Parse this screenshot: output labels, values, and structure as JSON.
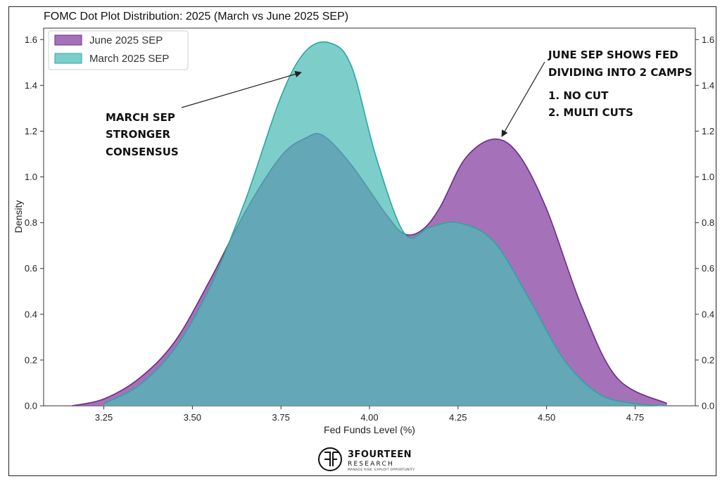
{
  "chart_data": {
    "type": "area",
    "title": "FOMC Dot Plot Distribution: 2025 (March vs June 2025 SEP)",
    "xlabel": "Fed Funds Level (%)",
    "ylabel": "Density",
    "xlim": [
      3.08,
      4.92
    ],
    "ylim": [
      0,
      1.65
    ],
    "xticks": [
      "3.25",
      "3.50",
      "3.75",
      "4.00",
      "4.25",
      "4.50",
      "4.75"
    ],
    "yticks": [
      "0.0",
      "0.2",
      "0.4",
      "0.6",
      "0.8",
      "1.0",
      "1.2",
      "1.4",
      "1.6"
    ],
    "legend_position": "top-left",
    "grid": false,
    "series": [
      {
        "name": "June 2025 SEP",
        "color": "#8e4fa8",
        "x": [
          3.16,
          3.25,
          3.35,
          3.45,
          3.55,
          3.65,
          3.75,
          3.82,
          3.87,
          3.95,
          4.05,
          4.1,
          4.15,
          4.2,
          4.27,
          4.35,
          4.42,
          4.5,
          4.6,
          4.7,
          4.84
        ],
        "y": [
          0.0,
          0.03,
          0.12,
          0.28,
          0.55,
          0.85,
          1.09,
          1.17,
          1.18,
          1.05,
          0.83,
          0.75,
          0.77,
          0.87,
          1.08,
          1.165,
          1.1,
          0.86,
          0.43,
          0.12,
          0.01
        ]
      },
      {
        "name": "March 2025 SEP",
        "color": "#4bbbb5",
        "x": [
          3.25,
          3.35,
          3.45,
          3.55,
          3.65,
          3.75,
          3.82,
          3.89,
          3.95,
          4.02,
          4.1,
          4.17,
          4.25,
          4.35,
          4.45,
          4.55,
          4.65,
          4.75,
          4.84
        ],
        "y": [
          0.01,
          0.09,
          0.25,
          0.52,
          0.9,
          1.35,
          1.55,
          1.585,
          1.48,
          1.08,
          0.75,
          0.78,
          0.8,
          0.72,
          0.47,
          0.2,
          0.05,
          0.01,
          0.0
        ]
      }
    ],
    "annotations": [
      {
        "lines": [
          "MARCH SEP",
          "STRONGER",
          "CONSENSUS"
        ],
        "arrow_to": [
          3.8,
          1.45
        ]
      },
      {
        "lines": [
          "JUNE SEP SHOWS FED",
          "DIVIDING INTO 2 CAMPS",
          "",
          "1.  NO CUT",
          "2.  MULTI CUTS"
        ],
        "arrow_to": [
          4.37,
          1.18
        ]
      }
    ]
  },
  "logo": {
    "name": "3FOURTEEN",
    "sub": "RESEARCH",
    "tagline": "MANAGE RISK. EXPLOIT OPPORTUNITY"
  }
}
